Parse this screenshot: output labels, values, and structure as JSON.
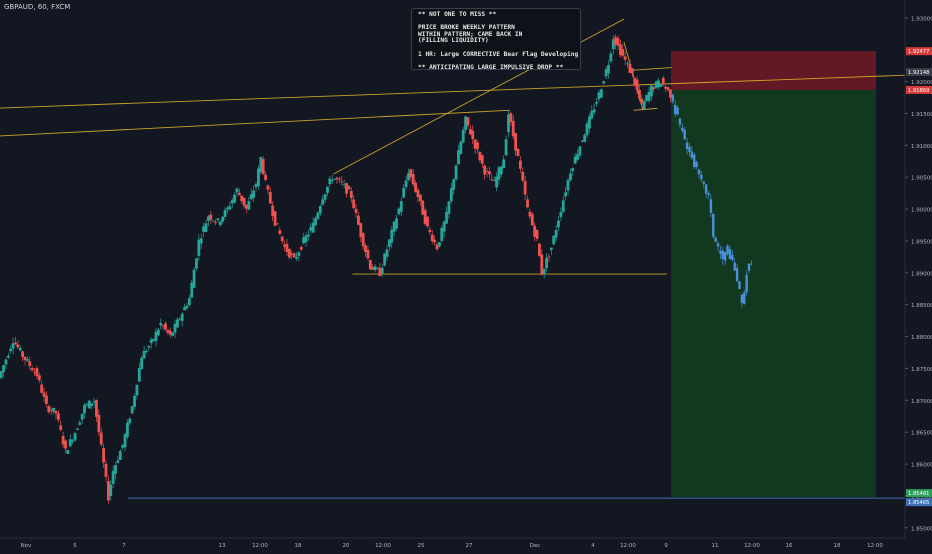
{
  "header": {
    "symbol_line": "GBPAUD, 60, FXCM"
  },
  "annotation": {
    "lines": [
      "** NOT ONE TO MISS **",
      "",
      "PRICE BROKE WEEKLY PATTERN",
      "WITHIN PATTERN; CAME BACK IN",
      "(FILLING LIQUIDITY)",
      "",
      "1 HR: Large CORRECTIVE Bear Flag Developing",
      "",
      "** ANTICIPATING LARGE IMPULSIVE DROP **"
    ]
  },
  "colors": {
    "background": "#131722",
    "bull": "#26a69a",
    "bear": "#ef5350",
    "projection": "#4a90d9",
    "trendline": "#c9a227",
    "support_line": "#3f6fb5",
    "stop_zone": "#6b1a26",
    "target_zone": "#133d1f"
  },
  "chart_data": {
    "type": "candlestick",
    "symbol": "GBPAUD",
    "timeframe": "60",
    "source": "FXCM",
    "ylim": [
      1.8484,
      1.9328
    ],
    "y_ticks": [
      "1.93000",
      "1.92500",
      "1.92000",
      "1.91500",
      "1.91000",
      "1.90500",
      "1.90000",
      "1.89500",
      "1.89000",
      "1.88500",
      "1.88000",
      "1.87500",
      "1.87000",
      "1.86500",
      "1.86000",
      "1.85500",
      "1.85000"
    ],
    "x_ticks": [
      "Nov",
      "5",
      "7",
      "13",
      "12:00",
      "18",
      "20",
      "12:00",
      "25",
      "27",
      "Dec",
      "4",
      "12:00",
      "9",
      "11",
      "12:00",
      "16",
      "18",
      "12:00"
    ],
    "price_labels": [
      {
        "text": "1.92477",
        "kind": "stop"
      },
      {
        "text": "1.92148",
        "kind": "current"
      },
      {
        "text": "1.91869",
        "kind": "entry"
      },
      {
        "text": "1.85481",
        "kind": "target"
      },
      {
        "text": "1.85465",
        "kind": "support"
      }
    ],
    "price_path": [
      [
        0,
        1.8735
      ],
      [
        3,
        1.8795
      ],
      [
        5,
        1.877
      ],
      [
        8,
        1.874
      ],
      [
        10,
        1.869
      ],
      [
        12,
        1.868
      ],
      [
        14,
        1.862
      ],
      [
        16,
        1.865
      ],
      [
        18,
        1.869
      ],
      [
        20,
        1.87
      ],
      [
        21,
        1.865
      ],
      [
        22,
        1.86
      ],
      [
        23,
        1.8548
      ],
      [
        24,
        1.859
      ],
      [
        26,
        1.863
      ],
      [
        28,
        1.869
      ],
      [
        30,
        1.877
      ],
      [
        32,
        1.879
      ],
      [
        34,
        1.882
      ],
      [
        36,
        1.88
      ],
      [
        38,
        1.883
      ],
      [
        40,
        1.886
      ],
      [
        42,
        1.895
      ],
      [
        44,
        1.899
      ],
      [
        46,
        1.898
      ],
      [
        48,
        1.9
      ],
      [
        50,
        1.903
      ],
      [
        52,
        1.9
      ],
      [
        54,
        1.904
      ],
      [
        55,
        1.908
      ],
      [
        56,
        1.904
      ],
      [
        58,
        1.898
      ],
      [
        60,
        1.894
      ],
      [
        62,
        1.892
      ],
      [
        64,
        1.895
      ],
      [
        66,
        1.8975
      ],
      [
        68,
        1.902
      ],
      [
        70,
        1.905
      ],
      [
        72,
        1.904
      ],
      [
        74,
        1.902
      ],
      [
        76,
        1.896
      ],
      [
        78,
        1.891
      ],
      [
        80,
        1.89
      ],
      [
        82,
        1.895
      ],
      [
        84,
        1.9
      ],
      [
        86,
        1.906
      ],
      [
        88,
        1.902
      ],
      [
        90,
        1.897
      ],
      [
        92,
        1.894
      ],
      [
        94,
        1.899
      ],
      [
        96,
        1.907
      ],
      [
        98,
        1.914
      ],
      [
        100,
        1.91
      ],
      [
        102,
        1.906
      ],
      [
        104,
        1.904
      ],
      [
        106,
        1.908
      ],
      [
        107,
        1.915
      ],
      [
        109,
        1.908
      ],
      [
        111,
        1.9
      ],
      [
        113,
        1.895
      ],
      [
        114,
        1.89
      ],
      [
        116,
        1.894
      ],
      [
        118,
        1.9
      ],
      [
        120,
        1.906
      ],
      [
        122,
        1.91
      ],
      [
        124,
        1.914
      ],
      [
        126,
        1.918
      ],
      [
        128,
        1.923
      ],
      [
        129,
        1.927
      ],
      [
        131,
        1.924
      ],
      [
        133,
        1.921
      ],
      [
        135,
        1.916
      ],
      [
        137,
        1.919
      ],
      [
        139,
        1.92
      ],
      [
        141,
        1.918
      ]
    ],
    "projection_path": [
      [
        141,
        1.918
      ],
      [
        143,
        1.913
      ],
      [
        145,
        1.909
      ],
      [
        147,
        1.905
      ],
      [
        149,
        1.902
      ],
      [
        150,
        1.896
      ],
      [
        152,
        1.892
      ],
      [
        153,
        1.894
      ],
      [
        155,
        1.889
      ],
      [
        156,
        1.885
      ],
      [
        157,
        1.89
      ],
      [
        158,
        1.892
      ]
    ],
    "x_range": [
      0,
      190
    ],
    "levels": {
      "stop": 1.92477,
      "current": 1.92148,
      "entry": 1.91869,
      "target": 1.85481,
      "support": 1.85465
    }
  }
}
